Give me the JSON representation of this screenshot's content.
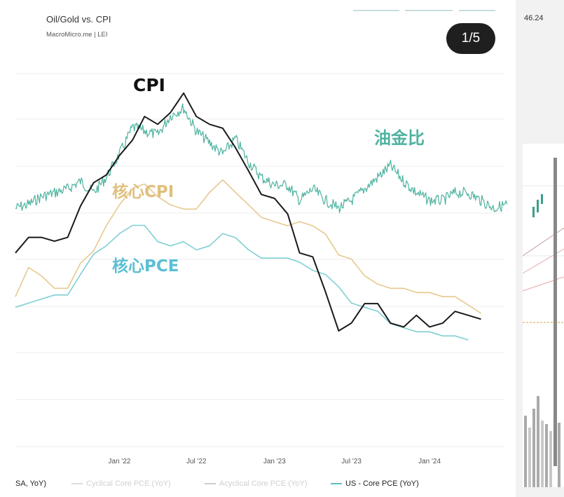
{
  "header": {
    "title": "Oil/Gold vs. CPI",
    "subtitle": "MacroMicro.me | LEI",
    "pager": "1/5"
  },
  "annotations": {
    "cpi": "CPI",
    "oil_gold": "油金比",
    "core_cpi": "核心CPI",
    "core_pce": "核心PCE"
  },
  "legend": [
    {
      "label": "SA, YoY)",
      "color": "#333333"
    },
    {
      "label": "Cyclical Core PCE (YoY)",
      "color": "#dddddd"
    },
    {
      "label": "Acyclical Core PCE (YoY)",
      "color": "#cccccc"
    },
    {
      "label": "US - Core PCE (YoY)",
      "color": "#5bbfc4"
    }
  ],
  "side": {
    "top_value": "46.24"
  },
  "chart_data": {
    "type": "line",
    "title": "Oil/Gold vs. CPI",
    "x_tick_labels": [
      "Jan '22",
      "Jul '22",
      "Jan '23",
      "Jul '23",
      "Jan '24"
    ],
    "y_axis_labels_visible": false,
    "grid": "horizontal",
    "series": [
      {
        "name": "CPI",
        "color": "#1a1a1a",
        "x": [
          "2021-05",
          "2021-06",
          "2021-07",
          "2021-08",
          "2021-09",
          "2021-10",
          "2021-11",
          "2021-12",
          "2022-01",
          "2022-02",
          "2022-03",
          "2022-04",
          "2022-05",
          "2022-06",
          "2022-07",
          "2022-08",
          "2022-09",
          "2022-10",
          "2022-11",
          "2022-12",
          "2023-01",
          "2023-02",
          "2023-03",
          "2023-04",
          "2023-05",
          "2023-06",
          "2023-07",
          "2023-08",
          "2023-09",
          "2023-10",
          "2023-11",
          "2023-12",
          "2024-01",
          "2024-02",
          "2024-03",
          "2024-04",
          "2024-05"
        ],
        "values": [
          5.0,
          5.4,
          5.4,
          5.3,
          5.4,
          6.2,
          6.8,
          7.0,
          7.5,
          7.9,
          8.5,
          8.3,
          8.6,
          9.1,
          8.5,
          8.3,
          8.2,
          7.7,
          7.1,
          6.5,
          6.4,
          6.0,
          5.0,
          4.9,
          4.0,
          3.0,
          3.2,
          3.7,
          3.7,
          3.2,
          3.1,
          3.4,
          3.1,
          3.2,
          3.5,
          3.4,
          3.3
        ]
      },
      {
        "name": "核心CPI",
        "color": "#e6c98e",
        "x": [
          "2021-05",
          "2021-06",
          "2021-07",
          "2021-08",
          "2021-09",
          "2021-10",
          "2021-11",
          "2021-12",
          "2022-01",
          "2022-02",
          "2022-03",
          "2022-04",
          "2022-05",
          "2022-06",
          "2022-07",
          "2022-08",
          "2022-09",
          "2022-10",
          "2022-11",
          "2022-12",
          "2023-01",
          "2023-02",
          "2023-03",
          "2023-04",
          "2023-05",
          "2023-06",
          "2023-07",
          "2023-08",
          "2023-09",
          "2023-10",
          "2023-11",
          "2023-12",
          "2024-01",
          "2024-02",
          "2024-03",
          "2024-04",
          "2024-05"
        ],
        "values": [
          3.8,
          4.5,
          4.3,
          4.0,
          4.0,
          4.6,
          4.9,
          5.5,
          6.0,
          6.4,
          6.5,
          6.2,
          6.0,
          5.9,
          5.9,
          6.3,
          6.6,
          6.3,
          6.0,
          5.7,
          5.6,
          5.5,
          5.6,
          5.5,
          5.3,
          4.8,
          4.7,
          4.3,
          4.1,
          4.0,
          4.0,
          3.9,
          3.9,
          3.8,
          3.8,
          3.6,
          3.4
        ]
      },
      {
        "name": "核心PCE",
        "color": "#7fcfd4",
        "x": [
          "2021-05",
          "2021-06",
          "2021-07",
          "2021-08",
          "2021-09",
          "2021-10",
          "2021-11",
          "2021-12",
          "2022-01",
          "2022-02",
          "2022-03",
          "2022-04",
          "2022-05",
          "2022-06",
          "2022-07",
          "2022-08",
          "2022-09",
          "2022-10",
          "2022-11",
          "2022-12",
          "2023-01",
          "2023-02",
          "2023-03",
          "2023-04",
          "2023-05",
          "2023-06",
          "2023-07",
          "2023-08",
          "2023-09",
          "2023-10",
          "2023-11",
          "2023-12",
          "2024-01",
          "2024-02",
          "2024-03",
          "2024-04"
        ],
        "values": [
          3.4,
          3.5,
          3.6,
          3.7,
          3.7,
          4.2,
          4.7,
          4.9,
          5.2,
          5.4,
          5.4,
          5.0,
          4.9,
          5.0,
          4.8,
          4.9,
          5.2,
          5.1,
          4.8,
          4.6,
          4.6,
          4.6,
          4.5,
          4.3,
          4.2,
          3.9,
          3.5,
          3.4,
          3.3,
          3.0,
          2.9,
          2.8,
          2.8,
          2.7,
          2.7,
          2.6
        ]
      },
      {
        "name": "油金比",
        "color": "#4fb3a0",
        "x": [
          "2021-05",
          "2021-06",
          "2021-07",
          "2021-08",
          "2021-09",
          "2021-10",
          "2021-11",
          "2021-12",
          "2022-01",
          "2022-02",
          "2022-03",
          "2022-04",
          "2022-05",
          "2022-06",
          "2022-07",
          "2022-08",
          "2022-09",
          "2022-10",
          "2022-11",
          "2022-12",
          "2023-01",
          "2023-02",
          "2023-03",
          "2023-04",
          "2023-05",
          "2023-06",
          "2023-07",
          "2023-08",
          "2023-09",
          "2023-10",
          "2023-11",
          "2023-12",
          "2024-01",
          "2024-02",
          "2024-03",
          "2024-04",
          "2024-05",
          "2024-06",
          "2024-07"
        ],
        "values": [
          0.036,
          0.037,
          0.039,
          0.04,
          0.041,
          0.043,
          0.04,
          0.044,
          0.05,
          0.057,
          0.056,
          0.055,
          0.06,
          0.062,
          0.056,
          0.053,
          0.05,
          0.054,
          0.048,
          0.044,
          0.042,
          0.042,
          0.038,
          0.041,
          0.038,
          0.036,
          0.038,
          0.041,
          0.044,
          0.047,
          0.043,
          0.04,
          0.038,
          0.038,
          0.04,
          0.04,
          0.038,
          0.036,
          0.037
        ]
      }
    ]
  }
}
